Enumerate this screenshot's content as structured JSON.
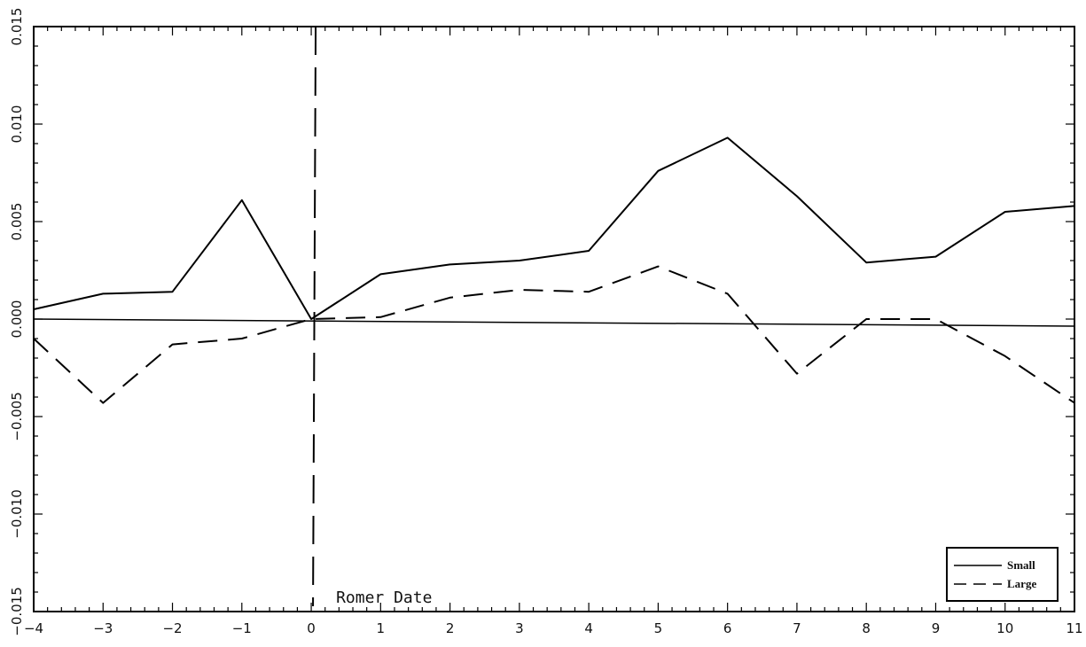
{
  "chart_data": {
    "type": "line",
    "title": "",
    "xlabel": "",
    "ylabel": "",
    "xlim": [
      -4,
      11
    ],
    "ylim": [
      -0.015,
      0.015
    ],
    "x_ticks": [
      "-4",
      "-3",
      "-2",
      "-1",
      "0",
      "1",
      "2",
      "3",
      "4",
      "5",
      "6",
      "7",
      "8",
      "9",
      "10",
      "11"
    ],
    "y_ticks": [
      "-0.015",
      "-0.010",
      "-0.005",
      "0.000",
      "0.005",
      "0.010",
      "0.015"
    ],
    "grid": false,
    "legend_position": "bottom-right",
    "x": [
      -4,
      -3,
      -2,
      -1,
      0,
      1,
      2,
      3,
      4,
      5,
      6,
      7,
      8,
      9,
      10,
      11
    ],
    "series": [
      {
        "name": "Small",
        "style": "solid",
        "values": [
          0.0005,
          0.0013,
          0.0014,
          0.0061,
          0.0,
          0.0023,
          0.0028,
          0.003,
          0.0035,
          0.0076,
          0.0093,
          0.0063,
          0.0029,
          0.0032,
          0.0055,
          0.0058
        ]
      },
      {
        "name": "Large",
        "style": "dashed",
        "values": [
          -0.001,
          -0.0043,
          -0.0013,
          -0.001,
          0.0,
          0.0001,
          0.0011,
          0.0015,
          0.0014,
          0.0027,
          0.0013,
          -0.0028,
          0.0,
          0.0,
          -0.0019,
          -0.0043
        ]
      }
    ],
    "annotations": [
      {
        "text": "Romer Date",
        "x": 0,
        "style": "dashed-vertical-line"
      }
    ]
  }
}
